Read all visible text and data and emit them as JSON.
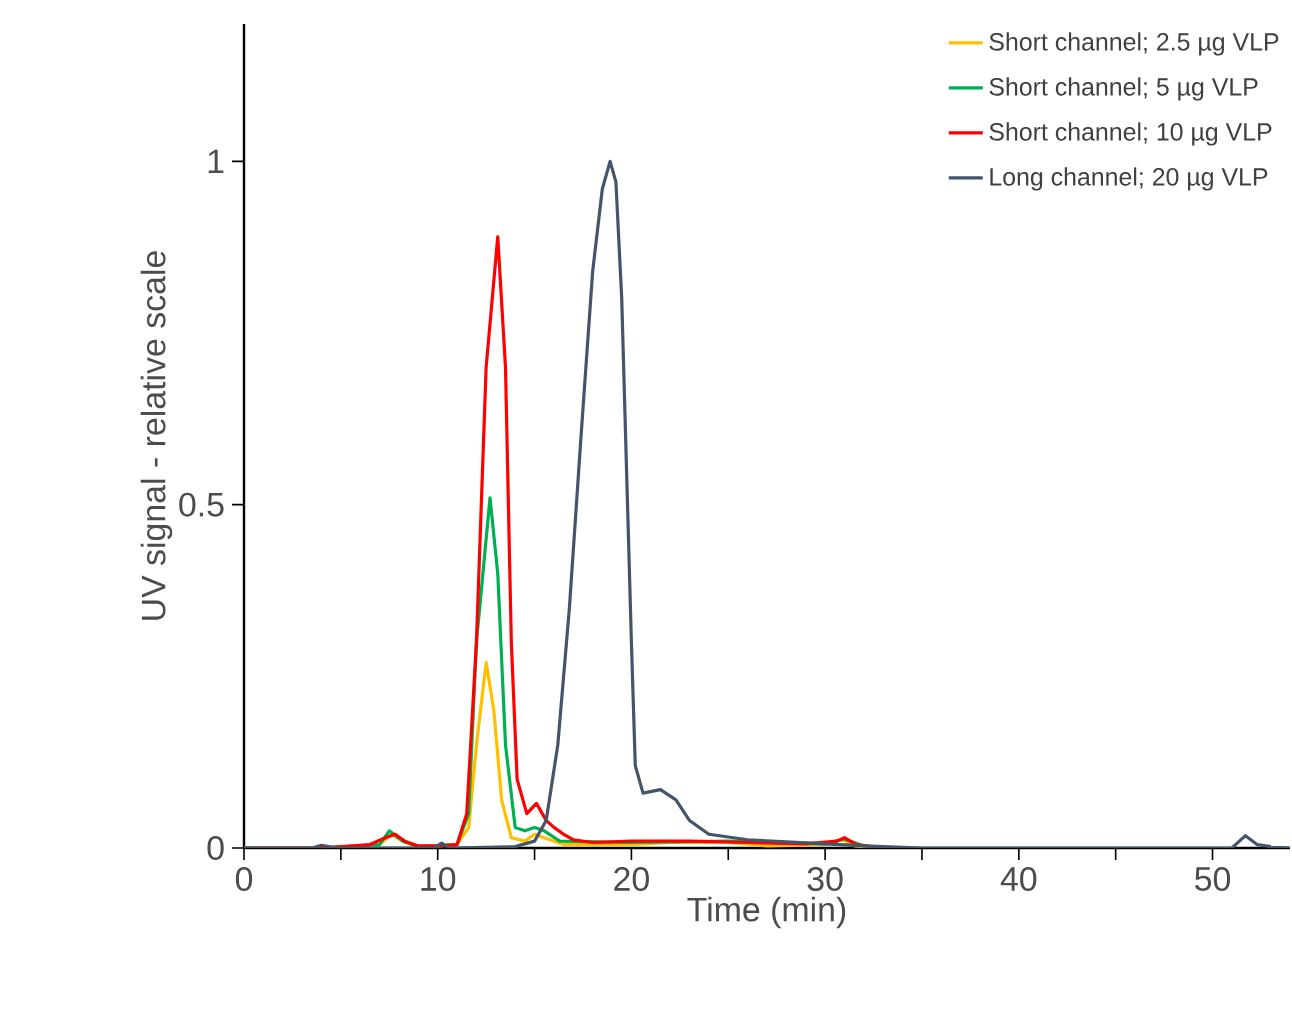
{
  "chart_data": {
    "type": "line",
    "xlabel": "Time (min)",
    "ylabel": "UV signal - relative scale",
    "xlim": [
      0,
      54
    ],
    "ylim": [
      0,
      1.2
    ],
    "xticks": [
      0,
      {
        "value": 5,
        "label": null
      },
      10,
      {
        "value": 15,
        "label": null
      },
      20,
      {
        "value": 25,
        "label": null
      },
      30,
      {
        "value": 35,
        "label": null
      },
      40,
      {
        "value": 45,
        "label": null
      },
      50
    ],
    "yticks": [
      0,
      0.5,
      1
    ],
    "grid": false,
    "legend": "top right",
    "line_style": "solid",
    "series": [
      {
        "name": "Short channel; 2.5 µg VLP",
        "color": "#ffc000",
        "x": [
          0,
          4,
          7,
          7.6,
          8.2,
          9,
          10,
          11,
          11.6,
          12,
          12.5,
          12.9,
          13.3,
          13.8,
          14.5,
          15,
          15.5,
          16.5,
          20,
          22,
          25,
          27,
          30,
          30.9,
          31.5,
          33
        ],
        "values": [
          0,
          0,
          0.005,
          0.02,
          0.01,
          0.002,
          0.003,
          0.005,
          0.03,
          0.15,
          0.27,
          0.2,
          0.07,
          0.015,
          0.01,
          0.02,
          0.015,
          0.005,
          0.005,
          0.008,
          0.008,
          0.003,
          0.005,
          0.012,
          0.003,
          0
        ]
      },
      {
        "name": "Short channel; 5 µg VLP",
        "color": "#00b050",
        "x": [
          0,
          4,
          7,
          7.5,
          8.2,
          9,
          10,
          11,
          11.6,
          12,
          12.7,
          13.1,
          13.5,
          14,
          14.5,
          15,
          15.5,
          16.3,
          20,
          25,
          30,
          31,
          32,
          33
        ],
        "values": [
          0,
          0,
          0.005,
          0.025,
          0.01,
          0.002,
          0.003,
          0.005,
          0.05,
          0.3,
          0.51,
          0.4,
          0.15,
          0.03,
          0.025,
          0.03,
          0.025,
          0.01,
          0.008,
          0.01,
          0.006,
          0.013,
          0.003,
          0
        ]
      },
      {
        "name": "Short channel; 10 µg VLP",
        "color": "#ff0000",
        "x": [
          0,
          4,
          6.5,
          7.3,
          7.8,
          8.3,
          9,
          10,
          11,
          11.5,
          12,
          12.5,
          13.1,
          13.5,
          13.8,
          14.1,
          14.6,
          15.1,
          15.6,
          16,
          16.5,
          17,
          18,
          20,
          23,
          26,
          29,
          30.6,
          31,
          31.6,
          33
        ],
        "values": [
          0,
          0,
          0.005,
          0.015,
          0.02,
          0.01,
          0.003,
          0.003,
          0.005,
          0.05,
          0.3,
          0.7,
          0.89,
          0.7,
          0.3,
          0.1,
          0.05,
          0.065,
          0.04,
          0.03,
          0.02,
          0.012,
          0.008,
          0.01,
          0.01,
          0.008,
          0.006,
          0.01,
          0.015,
          0.005,
          0
        ]
      },
      {
        "name": "Long channel; 20 µg VLP",
        "color": "#44546a",
        "x": [
          0,
          3.5,
          4,
          4.8,
          9.8,
          10.2,
          10.6,
          14,
          15,
          15.6,
          16.2,
          16.8,
          17.4,
          18,
          18.5,
          18.9,
          19.2,
          19.5,
          19.8,
          20,
          20.2,
          20.6,
          21.5,
          22.3,
          23,
          24,
          26,
          30,
          32,
          35,
          40,
          51,
          51.7,
          52.3,
          53,
          54
        ],
        "values": [
          0,
          0,
          0.004,
          0,
          0,
          0.007,
          0,
          0.002,
          0.01,
          0.04,
          0.15,
          0.35,
          0.6,
          0.84,
          0.96,
          1.0,
          0.97,
          0.8,
          0.5,
          0.3,
          0.12,
          0.08,
          0.085,
          0.07,
          0.04,
          0.02,
          0.012,
          0.006,
          0.003,
          0,
          0,
          0,
          0.018,
          0.005,
          0.002,
          0
        ]
      }
    ]
  }
}
